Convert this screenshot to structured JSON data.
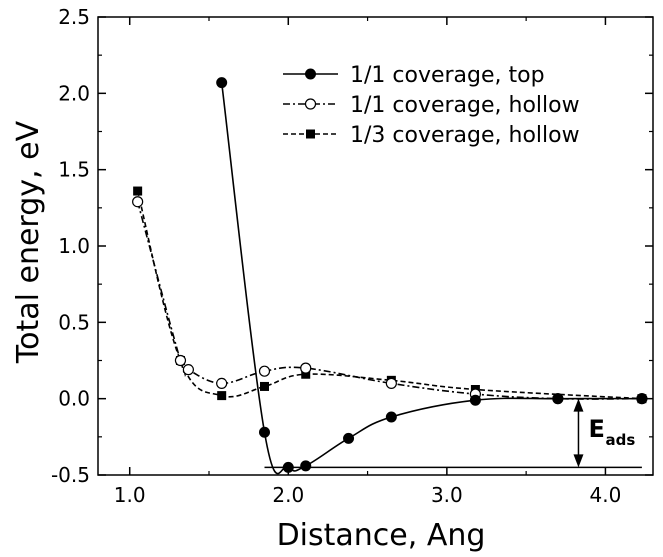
{
  "chart_data": {
    "type": "line",
    "title": "",
    "xlabel": "Distance, Ang",
    "ylabel": "Total energy, eV",
    "xlim": [
      0.8,
      4.3
    ],
    "ylim": [
      -0.5,
      2.5
    ],
    "x_ticks": [
      1.0,
      2.0,
      3.0,
      4.0
    ],
    "x_tick_labels": [
      "1.0",
      "2.0",
      "3.0",
      "4.0"
    ],
    "y_ticks": [
      -0.5,
      0.0,
      0.5,
      1.0,
      1.5,
      2.0,
      2.5
    ],
    "y_tick_labels": [
      "-0.5",
      "0.0",
      "0.5",
      "1.0",
      "1.5",
      "2.0",
      "2.5"
    ],
    "grid": false,
    "legend_position": "top-right",
    "series": [
      {
        "name": "1/1 coverage, top",
        "marker": "filled-circle",
        "line": "solid",
        "color": "#000000",
        "x": [
          1.58,
          1.85,
          2.0,
          2.11,
          2.38,
          2.65,
          3.18,
          3.7,
          4.23
        ],
        "y": [
          2.07,
          -0.22,
          -0.45,
          -0.44,
          -0.26,
          -0.12,
          -0.01,
          0.0,
          0.0
        ]
      },
      {
        "name": "1/1 coverage, hollow",
        "marker": "open-circle",
        "line": "dash-dot",
        "color": "#000000",
        "x": [
          1.05,
          1.32,
          1.37,
          1.58,
          1.85,
          2.11,
          2.65,
          3.18,
          3.7,
          4.23
        ],
        "y": [
          1.29,
          0.25,
          0.19,
          0.1,
          0.18,
          0.2,
          0.1,
          0.03,
          0.0,
          0.0
        ]
      },
      {
        "name": "1/3 coverage, hollow",
        "marker": "filled-square",
        "line": "dashed",
        "color": "#000000",
        "x": [
          1.05,
          1.32,
          1.58,
          1.85,
          2.11,
          2.65,
          3.18,
          4.23
        ],
        "y": [
          1.36,
          0.25,
          0.02,
          0.08,
          0.16,
          0.12,
          0.06,
          0.0
        ]
      }
    ],
    "annotations": {
      "baseline_y": -0.45,
      "baseline_x_range": [
        1.85,
        4.23
      ],
      "arrow_x": 3.83,
      "arrow_y_range": [
        -0.45,
        0.0
      ],
      "label_main": "E",
      "label_sub": "ads"
    }
  }
}
